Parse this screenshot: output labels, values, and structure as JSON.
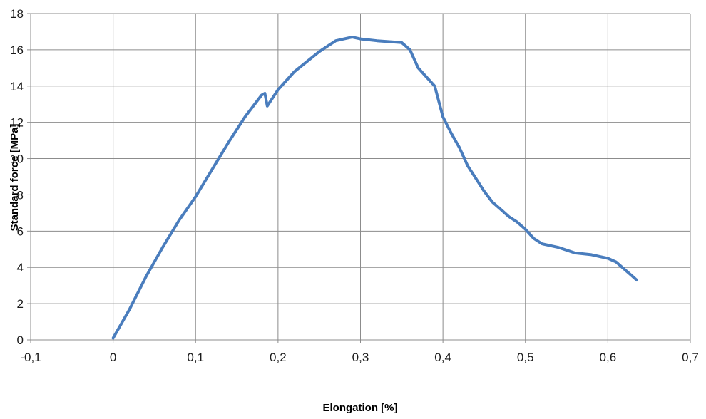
{
  "chart_data": {
    "type": "line",
    "title": "",
    "xlabel": "Elongation [%]",
    "ylabel": "Standard force [MPa]",
    "xlim": [
      -0.1,
      0.7
    ],
    "ylim": [
      0,
      18
    ],
    "x_ticks": [
      "-0,1",
      "0",
      "0,1",
      "0,2",
      "0,3",
      "0,4",
      "0,5",
      "0,6",
      "0,7"
    ],
    "x_tick_values": [
      -0.1,
      0,
      0.1,
      0.2,
      0.3,
      0.4,
      0.5,
      0.6,
      0.7
    ],
    "y_ticks": [
      "0",
      "2",
      "4",
      "6",
      "8",
      "10",
      "12",
      "14",
      "16",
      "18"
    ],
    "y_tick_values": [
      0,
      2,
      4,
      6,
      8,
      10,
      12,
      14,
      16,
      18
    ],
    "grid": true,
    "legend": "none",
    "series": [
      {
        "color": "#4a7dbd",
        "x": [
          0.0,
          0.01,
          0.02,
          0.04,
          0.06,
          0.08,
          0.1,
          0.12,
          0.14,
          0.16,
          0.18,
          0.184,
          0.187,
          0.2,
          0.22,
          0.25,
          0.27,
          0.28,
          0.29,
          0.3,
          0.32,
          0.35,
          0.36,
          0.37,
          0.38,
          0.39,
          0.4,
          0.41,
          0.42,
          0.43,
          0.44,
          0.45,
          0.46,
          0.47,
          0.48,
          0.49,
          0.5,
          0.51,
          0.52,
          0.54,
          0.56,
          0.58,
          0.6,
          0.61,
          0.62,
          0.63,
          0.635
        ],
        "y": [
          0.1,
          0.9,
          1.7,
          3.5,
          5.1,
          6.6,
          7.9,
          9.4,
          10.9,
          12.3,
          13.5,
          13.6,
          12.9,
          13.8,
          14.8,
          15.9,
          16.5,
          16.6,
          16.7,
          16.6,
          16.5,
          16.4,
          16.0,
          15.0,
          14.5,
          14.0,
          12.3,
          11.4,
          10.6,
          9.6,
          8.9,
          8.2,
          7.6,
          7.2,
          6.8,
          6.5,
          6.1,
          5.6,
          5.3,
          5.1,
          4.8,
          4.7,
          4.5,
          4.3,
          3.9,
          3.5,
          3.3
        ]
      }
    ]
  }
}
